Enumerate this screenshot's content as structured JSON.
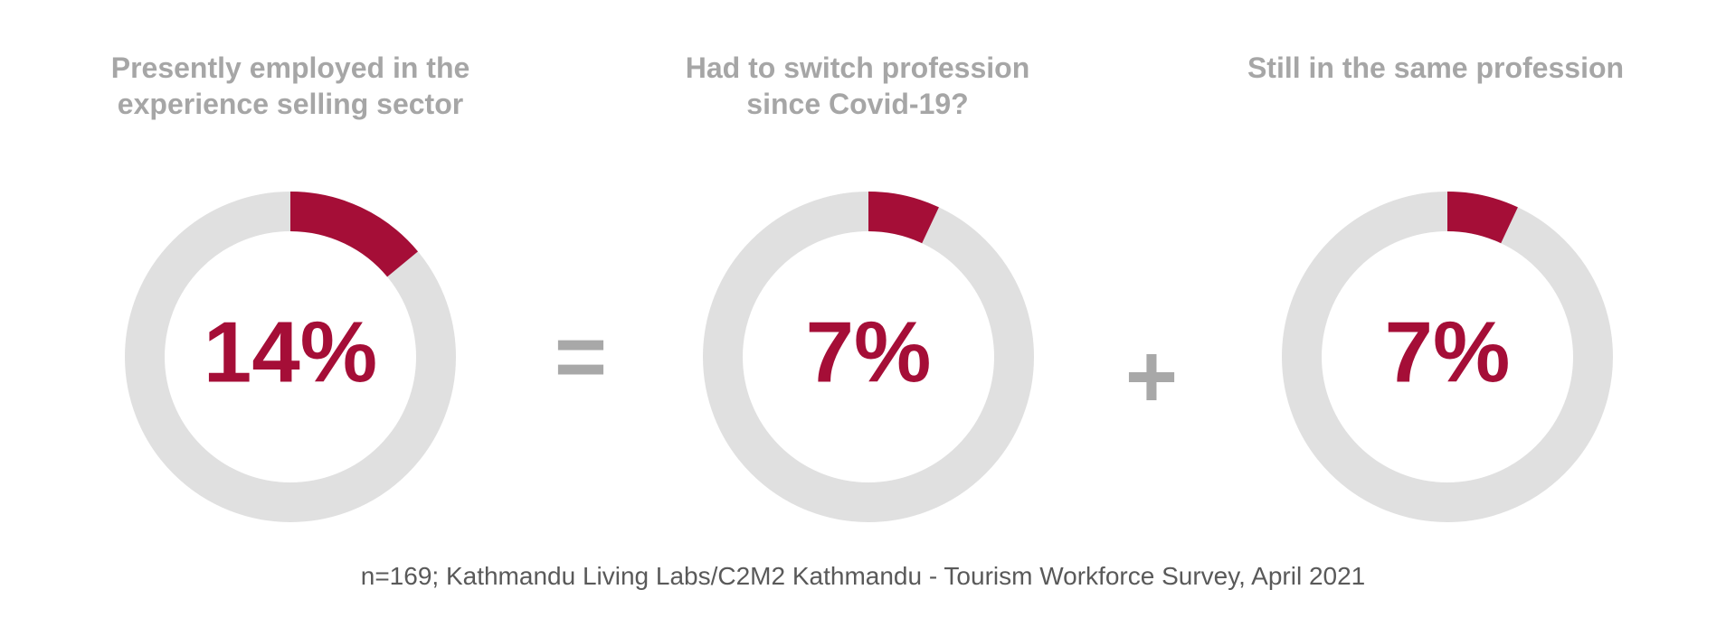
{
  "colors": {
    "accent": "#a50e37",
    "track": "#e0e0e0",
    "title": "#a6a6a6",
    "operator": "#a8a8a8",
    "note": "#595959"
  },
  "operators": {
    "equals": "=",
    "plus": "+"
  },
  "source_note": "n=169; Kathmandu Living Labs/C2M2 Kathmandu - Tourism Workforce Survey, April 2021",
  "chart_data": [
    {
      "type": "pie",
      "title": "Presently employed in the experience selling sector",
      "value": 14,
      "value_label": "14%"
    },
    {
      "type": "pie",
      "title": "Had to switch profession since Covid-19?",
      "value": 7,
      "value_label": "7%"
    },
    {
      "type": "pie",
      "title": "Still in the same profession",
      "value": 7,
      "value_label": "7%"
    }
  ]
}
